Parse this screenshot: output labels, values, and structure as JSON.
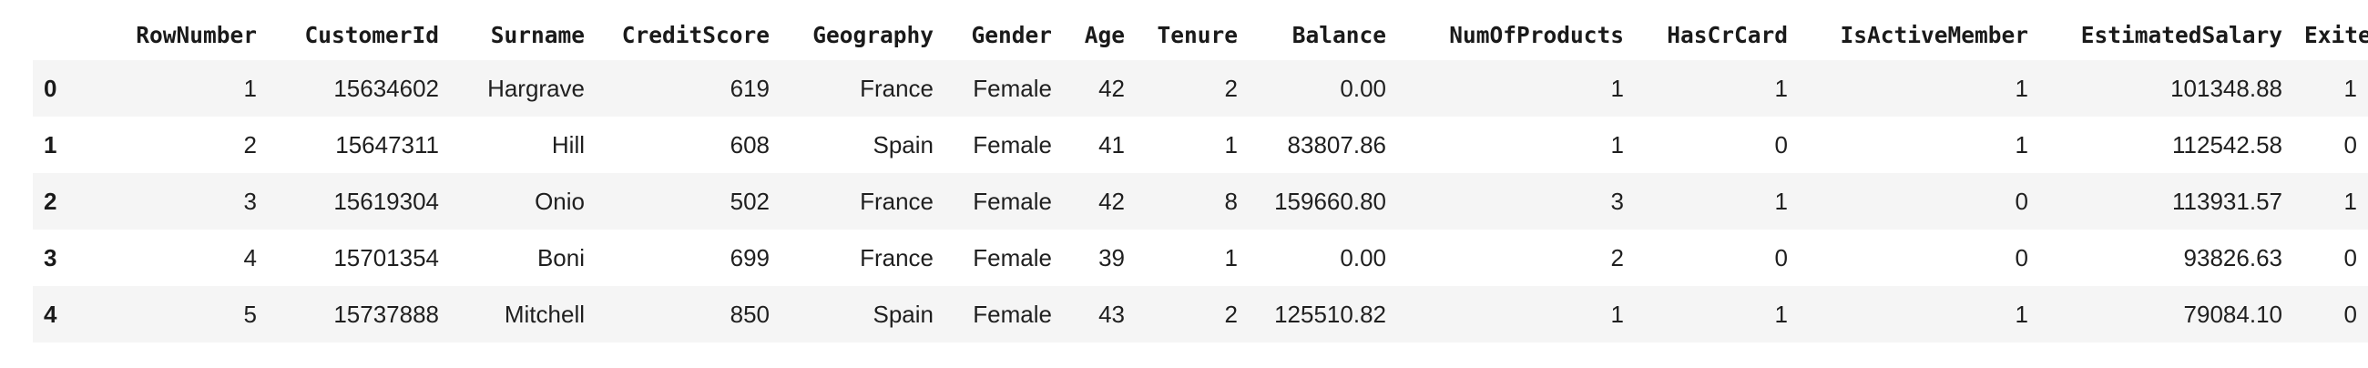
{
  "table": {
    "index_header": "",
    "columns": [
      "RowNumber",
      "CustomerId",
      "Surname",
      "CreditScore",
      "Geography",
      "Gender",
      "Age",
      "Tenure",
      "Balance",
      "NumOfProducts",
      "HasCrCard",
      "IsActiveMember",
      "EstimatedSalary",
      "Exited"
    ],
    "rows": [
      {
        "index": "0",
        "cells": [
          "1",
          "15634602",
          "Hargrave",
          "619",
          "France",
          "Female",
          "42",
          "2",
          "0.00",
          "1",
          "1",
          "1",
          "101348.88",
          "1"
        ]
      },
      {
        "index": "1",
        "cells": [
          "2",
          "15647311",
          "Hill",
          "608",
          "Spain",
          "Female",
          "41",
          "1",
          "83807.86",
          "1",
          "0",
          "1",
          "112542.58",
          "0"
        ]
      },
      {
        "index": "2",
        "cells": [
          "3",
          "15619304",
          "Onio",
          "502",
          "France",
          "Female",
          "42",
          "8",
          "159660.80",
          "3",
          "1",
          "0",
          "113931.57",
          "1"
        ]
      },
      {
        "index": "3",
        "cells": [
          "4",
          "15701354",
          "Boni",
          "699",
          "France",
          "Female",
          "39",
          "1",
          "0.00",
          "2",
          "0",
          "0",
          "93826.63",
          "0"
        ]
      },
      {
        "index": "4",
        "cells": [
          "5",
          "15737888",
          "Mitchell",
          "850",
          "Spain",
          "Female",
          "43",
          "2",
          "125510.82",
          "1",
          "1",
          "1",
          "79084.10",
          "0"
        ]
      }
    ]
  }
}
